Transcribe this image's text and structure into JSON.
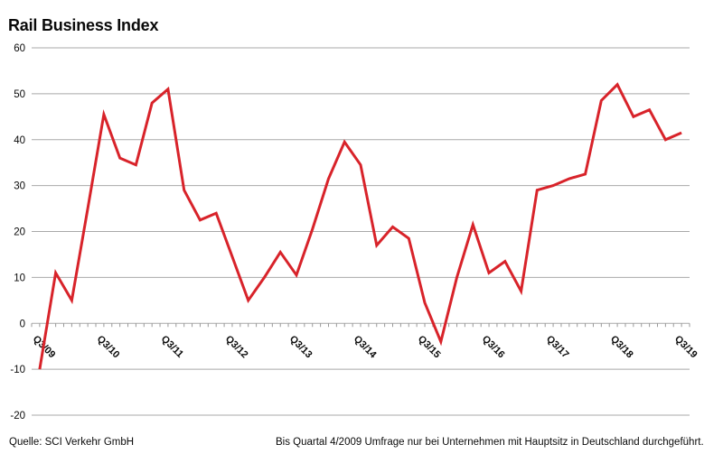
{
  "header": {
    "title": "Rail Business Index"
  },
  "chart_data": {
    "type": "line",
    "title": "Rail Business Index",
    "series_name": "Rail Business Index",
    "categories": [
      "Q3/09",
      "Q4/09",
      "Q1/10",
      "Q2/10",
      "Q3/10",
      "Q4/10",
      "Q1/11",
      "Q2/11",
      "Q3/11",
      "Q4/11",
      "Q1/12",
      "Q2/12",
      "Q3/12",
      "Q4/12",
      "Q1/13",
      "Q2/13",
      "Q3/13",
      "Q4/13",
      "Q1/14",
      "Q2/14",
      "Q3/14",
      "Q4/14",
      "Q1/15",
      "Q2/15",
      "Q3/15",
      "Q4/15",
      "Q1/16",
      "Q2/16",
      "Q3/16",
      "Q4/16",
      "Q1/17",
      "Q2/17",
      "Q3/17",
      "Q4/17",
      "Q1/18",
      "Q2/18",
      "Q3/18",
      "Q4/18",
      "Q1/19",
      "Q2/19",
      "Q3/19"
    ],
    "values": [
      -10,
      11,
      5,
      25,
      45.5,
      36,
      34.5,
      48,
      51,
      29,
      22.5,
      24,
      14.5,
      5,
      10,
      15.5,
      10.5,
      20.5,
      31.5,
      39.5,
      34.5,
      17,
      21,
      18.5,
      4.5,
      -4,
      10,
      21.5,
      11,
      13.5,
      7,
      29,
      30,
      31.5,
      32.5,
      48.5,
      52,
      45,
      46.5,
      40,
      41.5
    ],
    "x_labels_shown": [
      "Q3/09",
      "Q3/10",
      "Q3/11",
      "Q3/12",
      "Q3/13",
      "Q3/14",
      "Q3/15",
      "Q3/16",
      "Q3/17",
      "Q3/18",
      "Q3/19"
    ],
    "x_label_every": 4,
    "y_ticks": [
      60,
      50,
      40,
      30,
      20,
      10,
      0,
      -10,
      -20
    ],
    "ylim": [
      -20,
      60
    ],
    "grid": "horizontal",
    "legend": "none",
    "colors": {
      "line": "#d8232a",
      "grid": "#a9a9a9",
      "axis": "#999999",
      "text": "#0a0a0a"
    }
  },
  "footer": {
    "source": "Quelle: SCI Verkehr GmbH",
    "note": "Bis Quartal 4/2009 Umfrage nur bei Unternehmen mit Hauptsitz in Deutschland durchgeführt."
  }
}
